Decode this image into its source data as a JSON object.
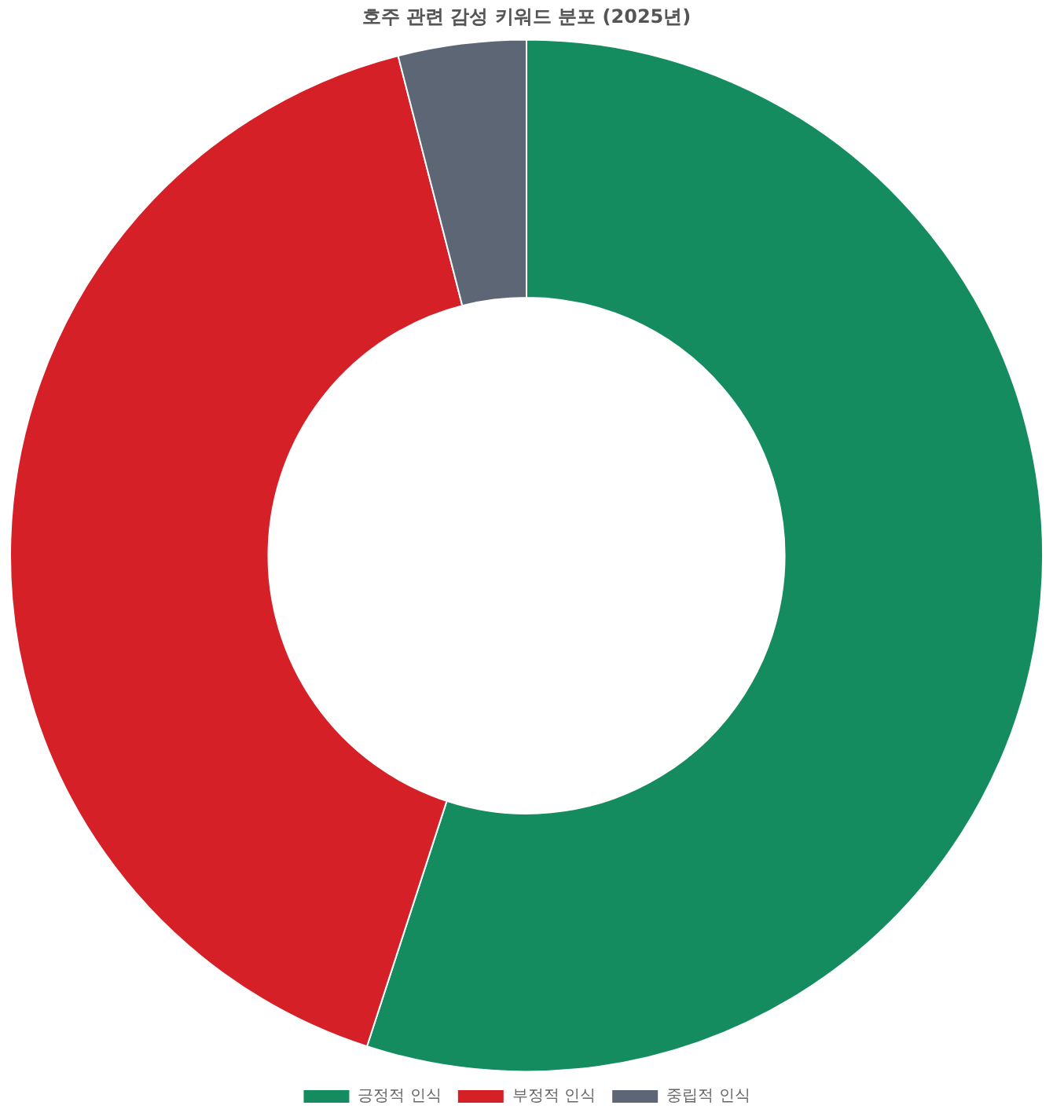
{
  "chart_data": {
    "type": "donut",
    "title": "호주 관련 감성 키워드 분포 (2025년)",
    "categories": [
      "긍정적 인식",
      "부정적 인식",
      "중립적 인식"
    ],
    "values": [
      55,
      41,
      4
    ],
    "colors": [
      "#148c60",
      "#d62027",
      "#5d6675"
    ],
    "legend": "bottom"
  }
}
